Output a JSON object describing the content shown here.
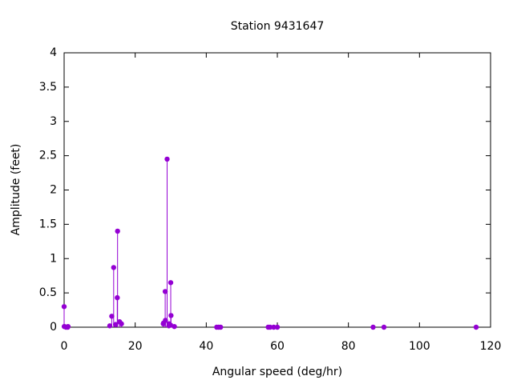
{
  "chart_data": {
    "type": "stem",
    "title": "Station 9431647",
    "x_label": "Angular speed (deg/hr)",
    "y_label": "Amplitude (feet)",
    "xlim": [
      0,
      120
    ],
    "xticks": [
      0,
      20,
      40,
      60,
      80,
      100,
      120
    ],
    "ylim": [
      0,
      4
    ],
    "yticks": [
      0,
      0.5,
      1,
      1.5,
      2,
      2.5,
      3,
      3.5,
      4
    ],
    "color": "#9400d3",
    "x": [
      0,
      0.04,
      0.08,
      0.54,
      1.02,
      1.1,
      12.85,
      13.4,
      13.94,
      14.49,
      14.96,
      15.04,
      15.59,
      16.14,
      27.9,
      27.97,
      28.44,
      28.51,
      28.98,
      29.46,
      29.53,
      29.96,
      30.0,
      30.08,
      31.02,
      42.93,
      43.48,
      44.03,
      57.42,
      57.97,
      58.98,
      60,
      86.95,
      90,
      115.94
    ],
    "values": [
      0.3,
      0.01,
      0.01,
      0.0,
      0.0,
      0.01,
      0.02,
      0.16,
      0.87,
      0.04,
      0.43,
      1.4,
      0.08,
      0.05,
      0.05,
      0.06,
      0.52,
      0.1,
      2.45,
      0.02,
      0.05,
      0.03,
      0.65,
      0.17,
      0.01,
      0.0,
      0.0,
      0.0,
      0.0,
      0.0,
      0.0,
      0.0,
      0.0,
      0.0,
      0.0
    ]
  }
}
